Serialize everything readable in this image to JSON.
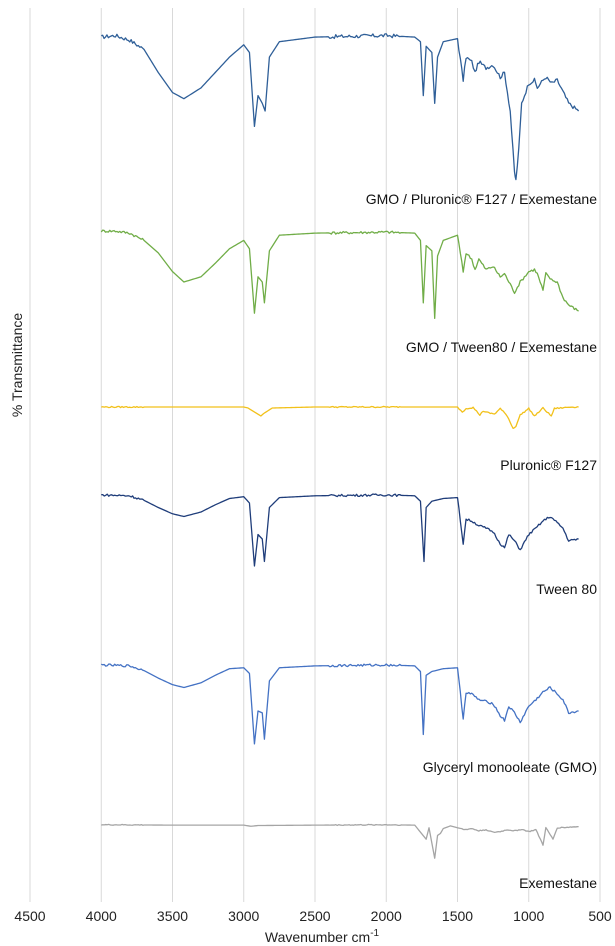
{
  "chart_data": {
    "type": "line",
    "xlabel": "Wavenumber cm",
    "xlabel_sup": "-1",
    "ylabel": "% Transmittance",
    "xlim": [
      4500,
      500
    ],
    "x_ticks": [
      4500,
      4000,
      3500,
      3000,
      2500,
      2000,
      1500,
      1000,
      500
    ],
    "grid": "vertical",
    "series": [
      {
        "name": "GMO / Pluronic® F127 / Exemestane",
        "color": "#2f5f98",
        "points": [
          [
            4000,
            0.98
          ],
          [
            3900,
            0.99
          ],
          [
            3800,
            0.96
          ],
          [
            3700,
            0.9
          ],
          [
            3600,
            0.75
          ],
          [
            3500,
            0.62
          ],
          [
            3420,
            0.58
          ],
          [
            3300,
            0.65
          ],
          [
            3200,
            0.75
          ],
          [
            3100,
            0.85
          ],
          [
            3000,
            0.93
          ],
          [
            2960,
            0.88
          ],
          [
            2925,
            0.4
          ],
          [
            2900,
            0.6
          ],
          [
            2870,
            0.55
          ],
          [
            2850,
            0.5
          ],
          [
            2820,
            0.85
          ],
          [
            2750,
            0.95
          ],
          [
            2500,
            0.98
          ],
          [
            2000,
            0.99
          ],
          [
            1800,
            0.98
          ],
          [
            1760,
            0.95
          ],
          [
            1740,
            0.6
          ],
          [
            1720,
            0.92
          ],
          [
            1680,
            0.88
          ],
          [
            1660,
            0.55
          ],
          [
            1640,
            0.85
          ],
          [
            1600,
            0.95
          ],
          [
            1500,
            0.97
          ],
          [
            1460,
            0.7
          ],
          [
            1440,
            0.85
          ],
          [
            1400,
            0.82
          ],
          [
            1377,
            0.75
          ],
          [
            1350,
            0.82
          ],
          [
            1300,
            0.78
          ],
          [
            1250,
            0.8
          ],
          [
            1200,
            0.72
          ],
          [
            1170,
            0.75
          ],
          [
            1130,
            0.5
          ],
          [
            1100,
            0.1
          ],
          [
            1090,
            0.05
          ],
          [
            1070,
            0.25
          ],
          [
            1050,
            0.55
          ],
          [
            1000,
            0.68
          ],
          [
            960,
            0.7
          ],
          [
            940,
            0.65
          ],
          [
            900,
            0.7
          ],
          [
            880,
            0.72
          ],
          [
            840,
            0.68
          ],
          [
            800,
            0.7
          ],
          [
            720,
            0.55
          ],
          [
            650,
            0.5
          ]
        ]
      },
      {
        "name": "GMO / Tween80 / Exemestane",
        "color": "#70ad47",
        "points": [
          [
            4000,
            0.99
          ],
          [
            3900,
            0.99
          ],
          [
            3800,
            0.97
          ],
          [
            3700,
            0.9
          ],
          [
            3600,
            0.78
          ],
          [
            3500,
            0.6
          ],
          [
            3420,
            0.5
          ],
          [
            3300,
            0.55
          ],
          [
            3200,
            0.68
          ],
          [
            3100,
            0.82
          ],
          [
            3000,
            0.9
          ],
          [
            2960,
            0.82
          ],
          [
            2925,
            0.2
          ],
          [
            2900,
            0.55
          ],
          [
            2870,
            0.5
          ],
          [
            2855,
            0.3
          ],
          [
            2820,
            0.8
          ],
          [
            2750,
            0.95
          ],
          [
            2500,
            0.97
          ],
          [
            2000,
            0.98
          ],
          [
            1800,
            0.97
          ],
          [
            1760,
            0.9
          ],
          [
            1740,
            0.3
          ],
          [
            1720,
            0.85
          ],
          [
            1680,
            0.8
          ],
          [
            1660,
            0.15
          ],
          [
            1640,
            0.75
          ],
          [
            1600,
            0.9
          ],
          [
            1500,
            0.95
          ],
          [
            1460,
            0.6
          ],
          [
            1440,
            0.78
          ],
          [
            1400,
            0.72
          ],
          [
            1377,
            0.62
          ],
          [
            1350,
            0.72
          ],
          [
            1300,
            0.62
          ],
          [
            1250,
            0.65
          ],
          [
            1200,
            0.55
          ],
          [
            1170,
            0.58
          ],
          [
            1100,
            0.4
          ],
          [
            1060,
            0.5
          ],
          [
            1000,
            0.6
          ],
          [
            960,
            0.62
          ],
          [
            940,
            0.58
          ],
          [
            900,
            0.42
          ],
          [
            880,
            0.58
          ],
          [
            840,
            0.52
          ],
          [
            800,
            0.5
          ],
          [
            760,
            0.35
          ],
          [
            720,
            0.28
          ],
          [
            650,
            0.22
          ]
        ]
      },
      {
        "name": "Pluronic® F127",
        "color": "#f2c11a",
        "points": [
          [
            4000,
            0.98
          ],
          [
            3500,
            0.98
          ],
          [
            3000,
            0.98
          ],
          [
            2970,
            0.96
          ],
          [
            2880,
            0.8
          ],
          [
            2860,
            0.85
          ],
          [
            2800,
            0.96
          ],
          [
            2500,
            0.98
          ],
          [
            2000,
            0.98
          ],
          [
            1500,
            0.98
          ],
          [
            1466,
            0.88
          ],
          [
            1440,
            0.95
          ],
          [
            1390,
            0.97
          ],
          [
            1343,
            0.82
          ],
          [
            1320,
            0.9
          ],
          [
            1280,
            0.86
          ],
          [
            1240,
            0.84
          ],
          [
            1200,
            0.95
          ],
          [
            1150,
            0.8
          ],
          [
            1110,
            0.55
          ],
          [
            1090,
            0.6
          ],
          [
            1060,
            0.82
          ],
          [
            1000,
            0.95
          ],
          [
            960,
            0.8
          ],
          [
            940,
            0.85
          ],
          [
            900,
            0.96
          ],
          [
            842,
            0.8
          ],
          [
            820,
            0.95
          ],
          [
            700,
            0.98
          ],
          [
            650,
            0.98
          ]
        ]
      },
      {
        "name": "Tween 80",
        "color": "#1f3d7a",
        "points": [
          [
            4000,
            0.99
          ],
          [
            3800,
            0.98
          ],
          [
            3700,
            0.93
          ],
          [
            3600,
            0.85
          ],
          [
            3500,
            0.78
          ],
          [
            3420,
            0.75
          ],
          [
            3300,
            0.8
          ],
          [
            3200,
            0.88
          ],
          [
            3100,
            0.95
          ],
          [
            3000,
            0.97
          ],
          [
            2960,
            0.9
          ],
          [
            2925,
            0.2
          ],
          [
            2900,
            0.55
          ],
          [
            2870,
            0.5
          ],
          [
            2855,
            0.25
          ],
          [
            2820,
            0.85
          ],
          [
            2750,
            0.96
          ],
          [
            2500,
            0.98
          ],
          [
            2000,
            0.99
          ],
          [
            1800,
            0.98
          ],
          [
            1760,
            0.92
          ],
          [
            1735,
            0.25
          ],
          [
            1720,
            0.85
          ],
          [
            1680,
            0.92
          ],
          [
            1600,
            0.95
          ],
          [
            1500,
            0.96
          ],
          [
            1460,
            0.45
          ],
          [
            1440,
            0.72
          ],
          [
            1400,
            0.7
          ],
          [
            1350,
            0.65
          ],
          [
            1300,
            0.62
          ],
          [
            1250,
            0.58
          ],
          [
            1200,
            0.45
          ],
          [
            1170,
            0.4
          ],
          [
            1140,
            0.55
          ],
          [
            1100,
            0.48
          ],
          [
            1060,
            0.38
          ],
          [
            1000,
            0.55
          ],
          [
            950,
            0.62
          ],
          [
            900,
            0.7
          ],
          [
            850,
            0.75
          ],
          [
            800,
            0.68
          ],
          [
            760,
            0.62
          ],
          [
            720,
            0.48
          ],
          [
            650,
            0.5
          ]
        ]
      },
      {
        "name": "Glyceryl monooleate (GMO)",
        "color": "#4472c4",
        "points": [
          [
            4000,
            0.99
          ],
          [
            3800,
            0.98
          ],
          [
            3700,
            0.93
          ],
          [
            3600,
            0.85
          ],
          [
            3500,
            0.78
          ],
          [
            3420,
            0.75
          ],
          [
            3300,
            0.8
          ],
          [
            3200,
            0.88
          ],
          [
            3100,
            0.95
          ],
          [
            3000,
            0.96
          ],
          [
            2960,
            0.9
          ],
          [
            2925,
            0.15
          ],
          [
            2900,
            0.5
          ],
          [
            2870,
            0.48
          ],
          [
            2855,
            0.2
          ],
          [
            2820,
            0.82
          ],
          [
            2750,
            0.96
          ],
          [
            2500,
            0.98
          ],
          [
            2000,
            0.99
          ],
          [
            1800,
            0.98
          ],
          [
            1760,
            0.92
          ],
          [
            1740,
            0.25
          ],
          [
            1720,
            0.88
          ],
          [
            1680,
            0.92
          ],
          [
            1600,
            0.95
          ],
          [
            1500,
            0.96
          ],
          [
            1460,
            0.42
          ],
          [
            1440,
            0.7
          ],
          [
            1400,
            0.68
          ],
          [
            1350,
            0.62
          ],
          [
            1300,
            0.6
          ],
          [
            1250,
            0.58
          ],
          [
            1200,
            0.45
          ],
          [
            1170,
            0.4
          ],
          [
            1140,
            0.55
          ],
          [
            1100,
            0.48
          ],
          [
            1060,
            0.38
          ],
          [
            1000,
            0.55
          ],
          [
            950,
            0.62
          ],
          [
            900,
            0.7
          ],
          [
            850,
            0.75
          ],
          [
            800,
            0.68
          ],
          [
            760,
            0.62
          ],
          [
            720,
            0.48
          ],
          [
            650,
            0.5
          ]
        ]
      },
      {
        "name": "Exemestane",
        "color": "#a5a5a5",
        "points": [
          [
            4000,
            0.98
          ],
          [
            3500,
            0.97
          ],
          [
            3000,
            0.97
          ],
          [
            2950,
            0.94
          ],
          [
            2900,
            0.96
          ],
          [
            2500,
            0.97
          ],
          [
            2000,
            0.98
          ],
          [
            1800,
            0.97
          ],
          [
            1720,
            0.6
          ],
          [
            1700,
            0.9
          ],
          [
            1660,
            0.1
          ],
          [
            1640,
            0.7
          ],
          [
            1620,
            0.75
          ],
          [
            1600,
            0.88
          ],
          [
            1550,
            0.95
          ],
          [
            1450,
            0.85
          ],
          [
            1400,
            0.88
          ],
          [
            1350,
            0.82
          ],
          [
            1300,
            0.85
          ],
          [
            1250,
            0.78
          ],
          [
            1200,
            0.8
          ],
          [
            1150,
            0.85
          ],
          [
            1100,
            0.82
          ],
          [
            1050,
            0.86
          ],
          [
            1000,
            0.8
          ],
          [
            950,
            0.85
          ],
          [
            900,
            0.45
          ],
          [
            880,
            0.9
          ],
          [
            830,
            0.6
          ],
          [
            800,
            0.9
          ],
          [
            700,
            0.92
          ],
          [
            650,
            0.93
          ]
        ]
      }
    ]
  }
}
